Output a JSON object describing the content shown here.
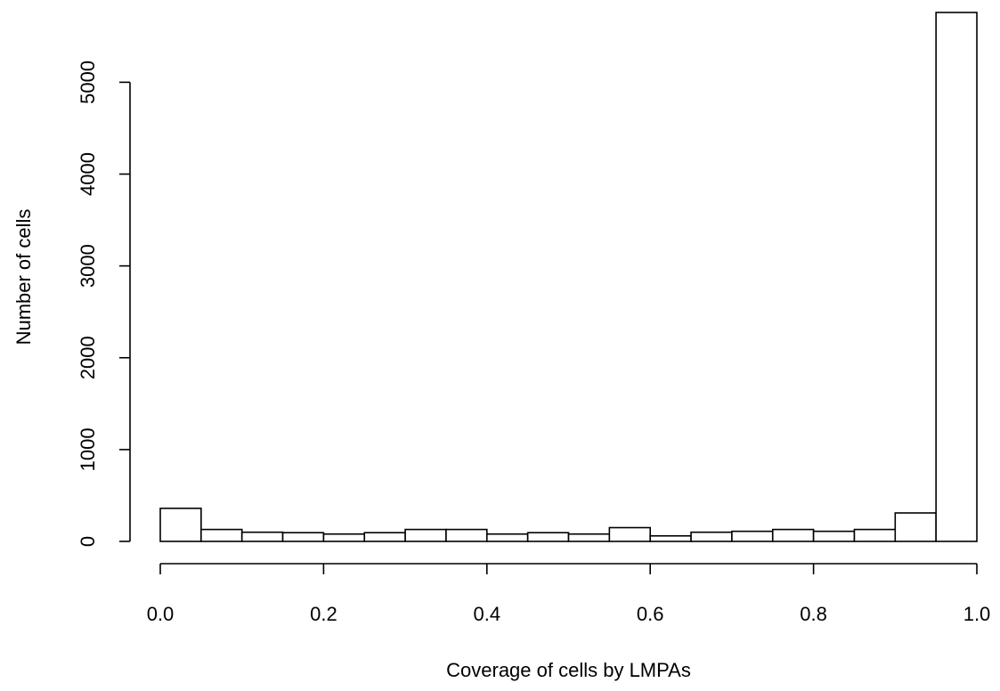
{
  "chart_data": {
    "type": "bar",
    "title": "",
    "xlabel": "Coverage of cells by LMPAs",
    "ylabel": "Number of cells",
    "bin_edges": [
      0.0,
      0.05,
      0.1,
      0.15,
      0.2,
      0.25,
      0.3,
      0.35,
      0.4,
      0.45,
      0.5,
      0.55,
      0.6,
      0.65,
      0.7,
      0.75,
      0.8,
      0.85,
      0.9,
      0.95,
      1.0
    ],
    "values": [
      360,
      130,
      100,
      95,
      80,
      95,
      130,
      130,
      80,
      95,
      80,
      150,
      60,
      100,
      110,
      130,
      110,
      130,
      310,
      5760
    ],
    "xlim": [
      0.0,
      1.0
    ],
    "ylim": [
      0,
      5760
    ],
    "x_ticks": [
      0.0,
      0.2,
      0.4,
      0.6,
      0.8,
      1.0
    ],
    "x_tick_labels": [
      "0.0",
      "0.2",
      "0.4",
      "0.6",
      "0.8",
      "1.0"
    ],
    "y_ticks": [
      0,
      1000,
      2000,
      3000,
      4000,
      5000
    ],
    "y_tick_labels": [
      "0",
      "1000",
      "2000",
      "3000",
      "4000",
      "5000"
    ],
    "grid": false,
    "colors": {
      "bar_fill": "#ffffff",
      "bar_stroke": "#000000",
      "axis": "#000000",
      "background": "#ffffff"
    }
  }
}
